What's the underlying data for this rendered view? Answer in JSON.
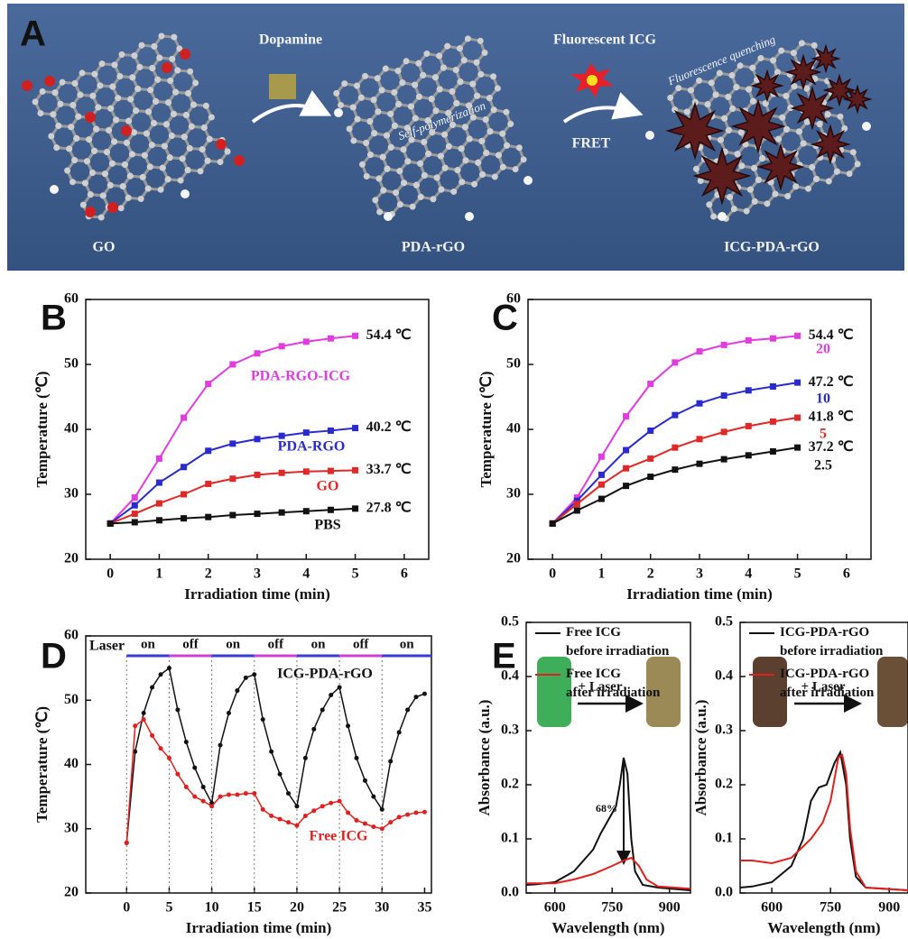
{
  "scheme": {
    "panel_label": "A",
    "step1": "Dopamine",
    "step1_note": "Self-polymerization",
    "step2": "Fluorescent ICG",
    "step2_note": "FRET",
    "step2_result": "Fluorescence quenching",
    "materials": [
      "GO",
      "PDA-rGO",
      "ICG-PDA-rGO"
    ]
  },
  "chart_data": [
    {
      "type": "line",
      "panel_label": "B",
      "xlabel": "Irradiation time (min)",
      "ylabel": "Temperature (℃)",
      "xlim": [
        -0.5,
        6.5
      ],
      "ylim": [
        20,
        60
      ],
      "xticks": [
        0,
        1,
        2,
        3,
        4,
        5,
        6
      ],
      "yticks": [
        20,
        30,
        40,
        50,
        60
      ],
      "marker": "square",
      "x": [
        0,
        0.5,
        1,
        1.5,
        2,
        2.5,
        3,
        3.5,
        4,
        4.5,
        5
      ],
      "series": [
        {
          "name": "PDA-RGO-ICG",
          "color": "#e03ce0",
          "values": [
            25.5,
            29.5,
            35.5,
            41.8,
            47,
            50,
            51.7,
            52.8,
            53.5,
            54,
            54.4
          ],
          "end_label": "54.4 ℃"
        },
        {
          "name": "PDA-RGO",
          "color": "#2a2ad0",
          "values": [
            25.5,
            28.3,
            31.8,
            34.2,
            36.7,
            37.8,
            38.5,
            39,
            39.5,
            39.8,
            40.2
          ],
          "end_label": "40.2 ℃"
        },
        {
          "name": "GO",
          "color": "#e02828",
          "values": [
            25.5,
            27,
            28.6,
            30,
            31.6,
            32.4,
            33,
            33.3,
            33.5,
            33.6,
            33.7
          ],
          "end_label": "33.7 ℃"
        },
        {
          "name": "PBS",
          "color": "#111111",
          "values": [
            25.5,
            25.7,
            26,
            26.3,
            26.5,
            26.8,
            27,
            27.2,
            27.4,
            27.6,
            27.8
          ],
          "end_label": "27.8 ℃"
        }
      ]
    },
    {
      "type": "line",
      "panel_label": "C",
      "xlabel": "Irradiation time (min)",
      "ylabel": "Temperature (℃)",
      "xlim": [
        -0.5,
        6.5
      ],
      "ylim": [
        20,
        60
      ],
      "xticks": [
        0,
        1,
        2,
        3,
        4,
        5,
        6
      ],
      "yticks": [
        20,
        30,
        40,
        50,
        60
      ],
      "marker": "square",
      "x": [
        0,
        0.5,
        1,
        1.5,
        2,
        2.5,
        3,
        3.5,
        4,
        4.5,
        5
      ],
      "series": [
        {
          "name": "20",
          "color": "#e03ce0",
          "values": [
            25.5,
            29.5,
            35.8,
            42,
            47,
            50.3,
            52,
            53,
            53.7,
            54,
            54.4
          ],
          "end_label": "54.4 ℃"
        },
        {
          "name": "10",
          "color": "#2a2ad0",
          "values": [
            25.5,
            29,
            33,
            36.8,
            39.8,
            42.2,
            44,
            45.2,
            46,
            46.6,
            47.2
          ],
          "end_label": "47.2 ℃"
        },
        {
          "name": "5",
          "color": "#e02828",
          "values": [
            25.5,
            28.5,
            31.5,
            34,
            35.5,
            37.2,
            38.5,
            39.6,
            40.5,
            41.2,
            41.8
          ],
          "end_label": "41.8 ℃"
        },
        {
          "name": "2.5",
          "color": "#111111",
          "values": [
            25.5,
            27.5,
            29.3,
            31.3,
            32.7,
            33.8,
            34.7,
            35.4,
            36,
            36.6,
            37.2
          ],
          "end_label": "37.2 ℃"
        }
      ]
    },
    {
      "type": "line",
      "panel_label": "D",
      "xlabel": "Irradiation time (min)",
      "ylabel": "Temperature (℃)",
      "xlim": [
        -4.8,
        35.8
      ],
      "ylim": [
        20,
        60
      ],
      "xticks": [
        0,
        5,
        10,
        15,
        20,
        25,
        30,
        35
      ],
      "yticks": [
        20,
        30,
        40,
        50,
        60
      ],
      "marker": "dot",
      "x": [
        0,
        1,
        2,
        3,
        4,
        5,
        6,
        7,
        8,
        9,
        10,
        11,
        12,
        13,
        14,
        15,
        16,
        17,
        18,
        19,
        20,
        21,
        22,
        23,
        24,
        25,
        26,
        27,
        28,
        29,
        30,
        31,
        32,
        33,
        34,
        35
      ],
      "series": [
        {
          "name": "ICG-PDA-rGO",
          "color": "#111111",
          "values": [
            27.8,
            42,
            48,
            52,
            54,
            55,
            48.5,
            43.5,
            39.5,
            36.5,
            34,
            43,
            48,
            51.5,
            53.5,
            54,
            47,
            42,
            38.5,
            35.5,
            33.5,
            41,
            45.5,
            48.5,
            50.8,
            52,
            46,
            41,
            37.5,
            35,
            33,
            40.5,
            45,
            48.5,
            50.5,
            51
          ]
        },
        {
          "name": "Free ICG",
          "color": "#e02020",
          "values": [
            27.8,
            46,
            47,
            44.5,
            42.5,
            41,
            38.5,
            36.5,
            35,
            34.3,
            33.5,
            35,
            35.3,
            35.3,
            35.5,
            35.5,
            33,
            32,
            31.5,
            31,
            30.5,
            32,
            32.8,
            33.5,
            34,
            34.3,
            32.5,
            31.3,
            30.8,
            30.3,
            30,
            31,
            31.8,
            32.2,
            32.5,
            32.6
          ]
        }
      ],
      "laser": {
        "label": "Laser",
        "states": [
          "on",
          "off",
          "on",
          "off",
          "on",
          "off",
          "on"
        ],
        "switch_times": [
          0,
          5,
          10,
          15,
          20,
          25,
          30
        ]
      }
    },
    {
      "type": "line",
      "panel_label": "E",
      "xlabel": "Wavelength (nm)",
      "ylabel": "Absorbance (a.u.)",
      "xlim": [
        525,
        955
      ],
      "ylim": [
        0,
        0.5
      ],
      "xticks": [
        600,
        750,
        900
      ],
      "yticks": [
        {
          "value": 0,
          "label": "0.0"
        },
        0.1,
        0.2,
        0.3,
        0.4,
        0.5
      ],
      "series": [
        {
          "name": "Free ICG\nbefore irradiation",
          "color": "#111111",
          "x": [
            525,
            550,
            600,
            650,
            700,
            720,
            740,
            760,
            770,
            780,
            790,
            800,
            810,
            830,
            870,
            955
          ],
          "values": [
            0.015,
            0.016,
            0.02,
            0.04,
            0.08,
            0.11,
            0.135,
            0.16,
            0.2,
            0.25,
            0.22,
            0.1,
            0.04,
            0.015,
            0.01,
            0.005
          ]
        },
        {
          "name": "Free ICG\nafter irradiation",
          "color": "#e02020",
          "x": [
            525,
            600,
            650,
            700,
            750,
            780,
            800,
            820,
            840,
            870,
            955
          ],
          "values": [
            0.018,
            0.018,
            0.025,
            0.035,
            0.05,
            0.06,
            0.065,
            0.05,
            0.025,
            0.012,
            0.008
          ]
        }
      ],
      "annotations": [
        "+ Laser",
        "68%"
      ]
    },
    {
      "type": "line",
      "xlabel": "Wavelength (nm)",
      "ylabel": "Absorbance (a.u.)",
      "xlim": [
        519,
        948
      ],
      "ylim": [
        0,
        0.5
      ],
      "xticks": [
        600,
        750,
        900
      ],
      "yticks": [
        {
          "value": 0,
          "label": "0.0"
        },
        0.1,
        0.2,
        0.3,
        0.4,
        0.5
      ],
      "series": [
        {
          "name": "ICG-PDA-rGO\nbefore irradiation",
          "color": "#111111",
          "x": [
            519,
            550,
            600,
            650,
            680,
            700,
            720,
            740,
            760,
            775,
            790,
            800,
            815,
            840,
            948
          ],
          "values": [
            0.01,
            0.012,
            0.02,
            0.05,
            0.1,
            0.17,
            0.195,
            0.2,
            0.24,
            0.26,
            0.2,
            0.1,
            0.03,
            0.01,
            0.005
          ]
        },
        {
          "name": "ICG-PDA-rGO\nafter irradiation",
          "color": "#e02020",
          "x": [
            519,
            550,
            600,
            650,
            700,
            730,
            750,
            770,
            780,
            790,
            800,
            815,
            840,
            948
          ],
          "values": [
            0.06,
            0.06,
            0.055,
            0.065,
            0.1,
            0.13,
            0.17,
            0.25,
            0.255,
            0.22,
            0.12,
            0.04,
            0.01,
            0.005
          ]
        }
      ],
      "annotations": [
        "+ Laser"
      ]
    }
  ]
}
